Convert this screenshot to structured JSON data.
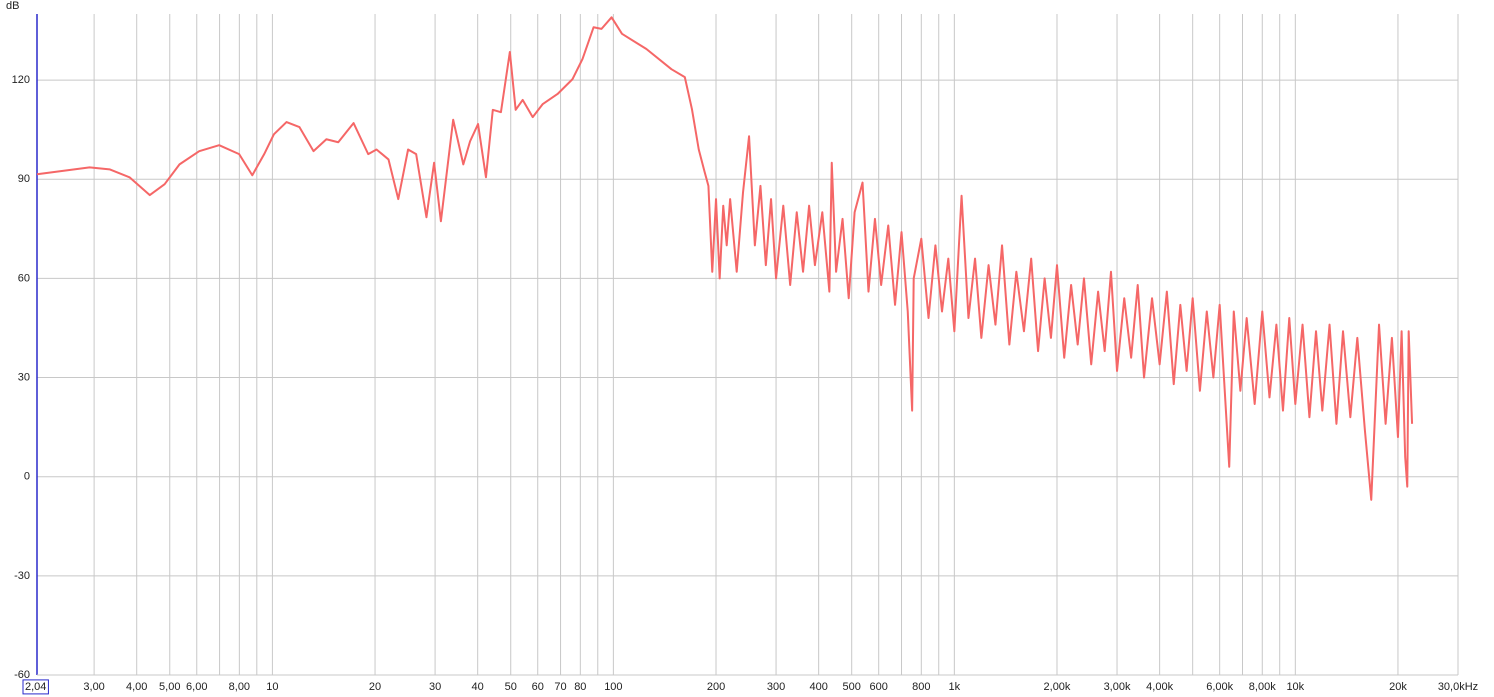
{
  "chart_data": {
    "type": "line",
    "y_label": "dB",
    "log_x": true,
    "grid": true,
    "xlim": [
      2.04,
      30000
    ],
    "ylim": [
      -60,
      140
    ],
    "yticks": [
      -60,
      -30,
      0,
      30,
      60,
      90,
      120
    ],
    "xticks": [
      {
        "value": 2.04,
        "label": "2,04"
      },
      {
        "value": 3,
        "label": "3,00"
      },
      {
        "value": 4,
        "label": "4,00"
      },
      {
        "value": 5,
        "label": "5,00"
      },
      {
        "value": 6,
        "label": "6,00"
      },
      {
        "value": 8,
        "label": "8,00"
      },
      10,
      20,
      30,
      40,
      50,
      60,
      70,
      80,
      100,
      200,
      300,
      400,
      500,
      600,
      800,
      {
        "value": 1000,
        "label": "1k"
      },
      {
        "value": 2000,
        "label": "2,00k"
      },
      {
        "value": 3000,
        "label": "3,00k"
      },
      {
        "value": 4000,
        "label": "4,00k"
      },
      {
        "value": 6000,
        "label": "6,00k"
      },
      {
        "value": 8000,
        "label": "8,00k"
      },
      {
        "value": 10000,
        "label": "10k"
      },
      {
        "value": 20000,
        "label": "20k"
      },
      {
        "value": 30000,
        "label": "30,0kHz"
      }
    ],
    "xgrid_minor": [
      7,
      9,
      90,
      700,
      900,
      5000,
      7000,
      9000
    ],
    "x": [
      2.04,
      2.91,
      3.33,
      3.81,
      4.37,
      4.83,
      5.34,
      6.1,
      6.98,
      7.99,
      8.73,
      9.46,
      10.1,
      11,
      12,
      13.2,
      14.4,
      15.6,
      17.3,
      19.1,
      20.2,
      21.9,
      23.4,
      25,
      26.4,
      28.3,
      29.8,
      31.2,
      33.9,
      36.3,
      38,
      40.1,
      42.3,
      44.3,
      46.8,
      49.7,
      51.7,
      54.2,
      58,
      62,
      68.6,
      75.9,
      81.2,
      87.5,
      92.3,
      98.8,
      106,
      125,
      148,
      162,
      170,
      178,
      185,
      190,
      195,
      200,
      205,
      210,
      215,
      220,
      230,
      240,
      250,
      260,
      270,
      280,
      290,
      300,
      315,
      330,
      345,
      360,
      375,
      390,
      410,
      430,
      437,
      450,
      470,
      490,
      510,
      538,
      560,
      585,
      610,
      640,
      670,
      700,
      730,
      752,
      760,
      800,
      840,
      880,
      920,
      960,
      1000,
      1050,
      1100,
      1150,
      1200,
      1260,
      1320,
      1380,
      1450,
      1520,
      1600,
      1680,
      1760,
      1840,
      1920,
      2000,
      2100,
      2200,
      2300,
      2400,
      2520,
      2640,
      2760,
      2880,
      3000,
      3150,
      3300,
      3450,
      3600,
      3800,
      4000,
      4200,
      4400,
      4600,
      4800,
      5000,
      5250,
      5500,
      5750,
      6000,
      6400,
      6600,
      6900,
      7200,
      7600,
      8000,
      8400,
      8800,
      9200,
      9600,
      10000,
      10500,
      11000,
      11500,
      12000,
      12600,
      13200,
      13800,
      14500,
      15200,
      16000,
      16700,
      17600,
      18400,
      19200,
      20000,
      20500,
      21000,
      21300,
      21500,
      22000
    ],
    "series": [
      {
        "color": "#f56767",
        "values": [
          91.5,
          93.6,
          93,
          90.6,
          85.2,
          88.5,
          94.5,
          98.5,
          100.3,
          97.6,
          91.2,
          97.6,
          103.6,
          107.3,
          105.8,
          98.5,
          102.1,
          101.2,
          107,
          97.6,
          99,
          96,
          84,
          99,
          97.6,
          78.5,
          95,
          77.3,
          108,
          94.5,
          101.5,
          106.7,
          90.6,
          111,
          110.3,
          128.5,
          111,
          114,
          108.8,
          112.7,
          115.8,
          120.3,
          126.4,
          136,
          135.5,
          139,
          134,
          129.4,
          123.3,
          120.9,
          111.2,
          99,
          92.4,
          88,
          62,
          84,
          60,
          82,
          70,
          84,
          62,
          86,
          103,
          70,
          88,
          64,
          84,
          60,
          82,
          58,
          80,
          62,
          82,
          64,
          80,
          56,
          95,
          62,
          78,
          54,
          80,
          89,
          56,
          78,
          58,
          76,
          52,
          74,
          50,
          20,
          60,
          72,
          48,
          70,
          50,
          66,
          44,
          85,
          48,
          66,
          42,
          64,
          46,
          70,
          40,
          62,
          44,
          66,
          38,
          60,
          42,
          64,
          36,
          58,
          40,
          60,
          34,
          56,
          38,
          62,
          32,
          54,
          36,
          58,
          30,
          54,
          34,
          56,
          28,
          52,
          32,
          54,
          26,
          50,
          30,
          52,
          3,
          50,
          26,
          48,
          22,
          50,
          24,
          46,
          20,
          48,
          22,
          46,
          18,
          44,
          20,
          46,
          16,
          44,
          18,
          42,
          14,
          -7,
          46,
          16,
          42,
          12,
          44,
          6,
          -3,
          44,
          16
        ]
      }
    ]
  }
}
